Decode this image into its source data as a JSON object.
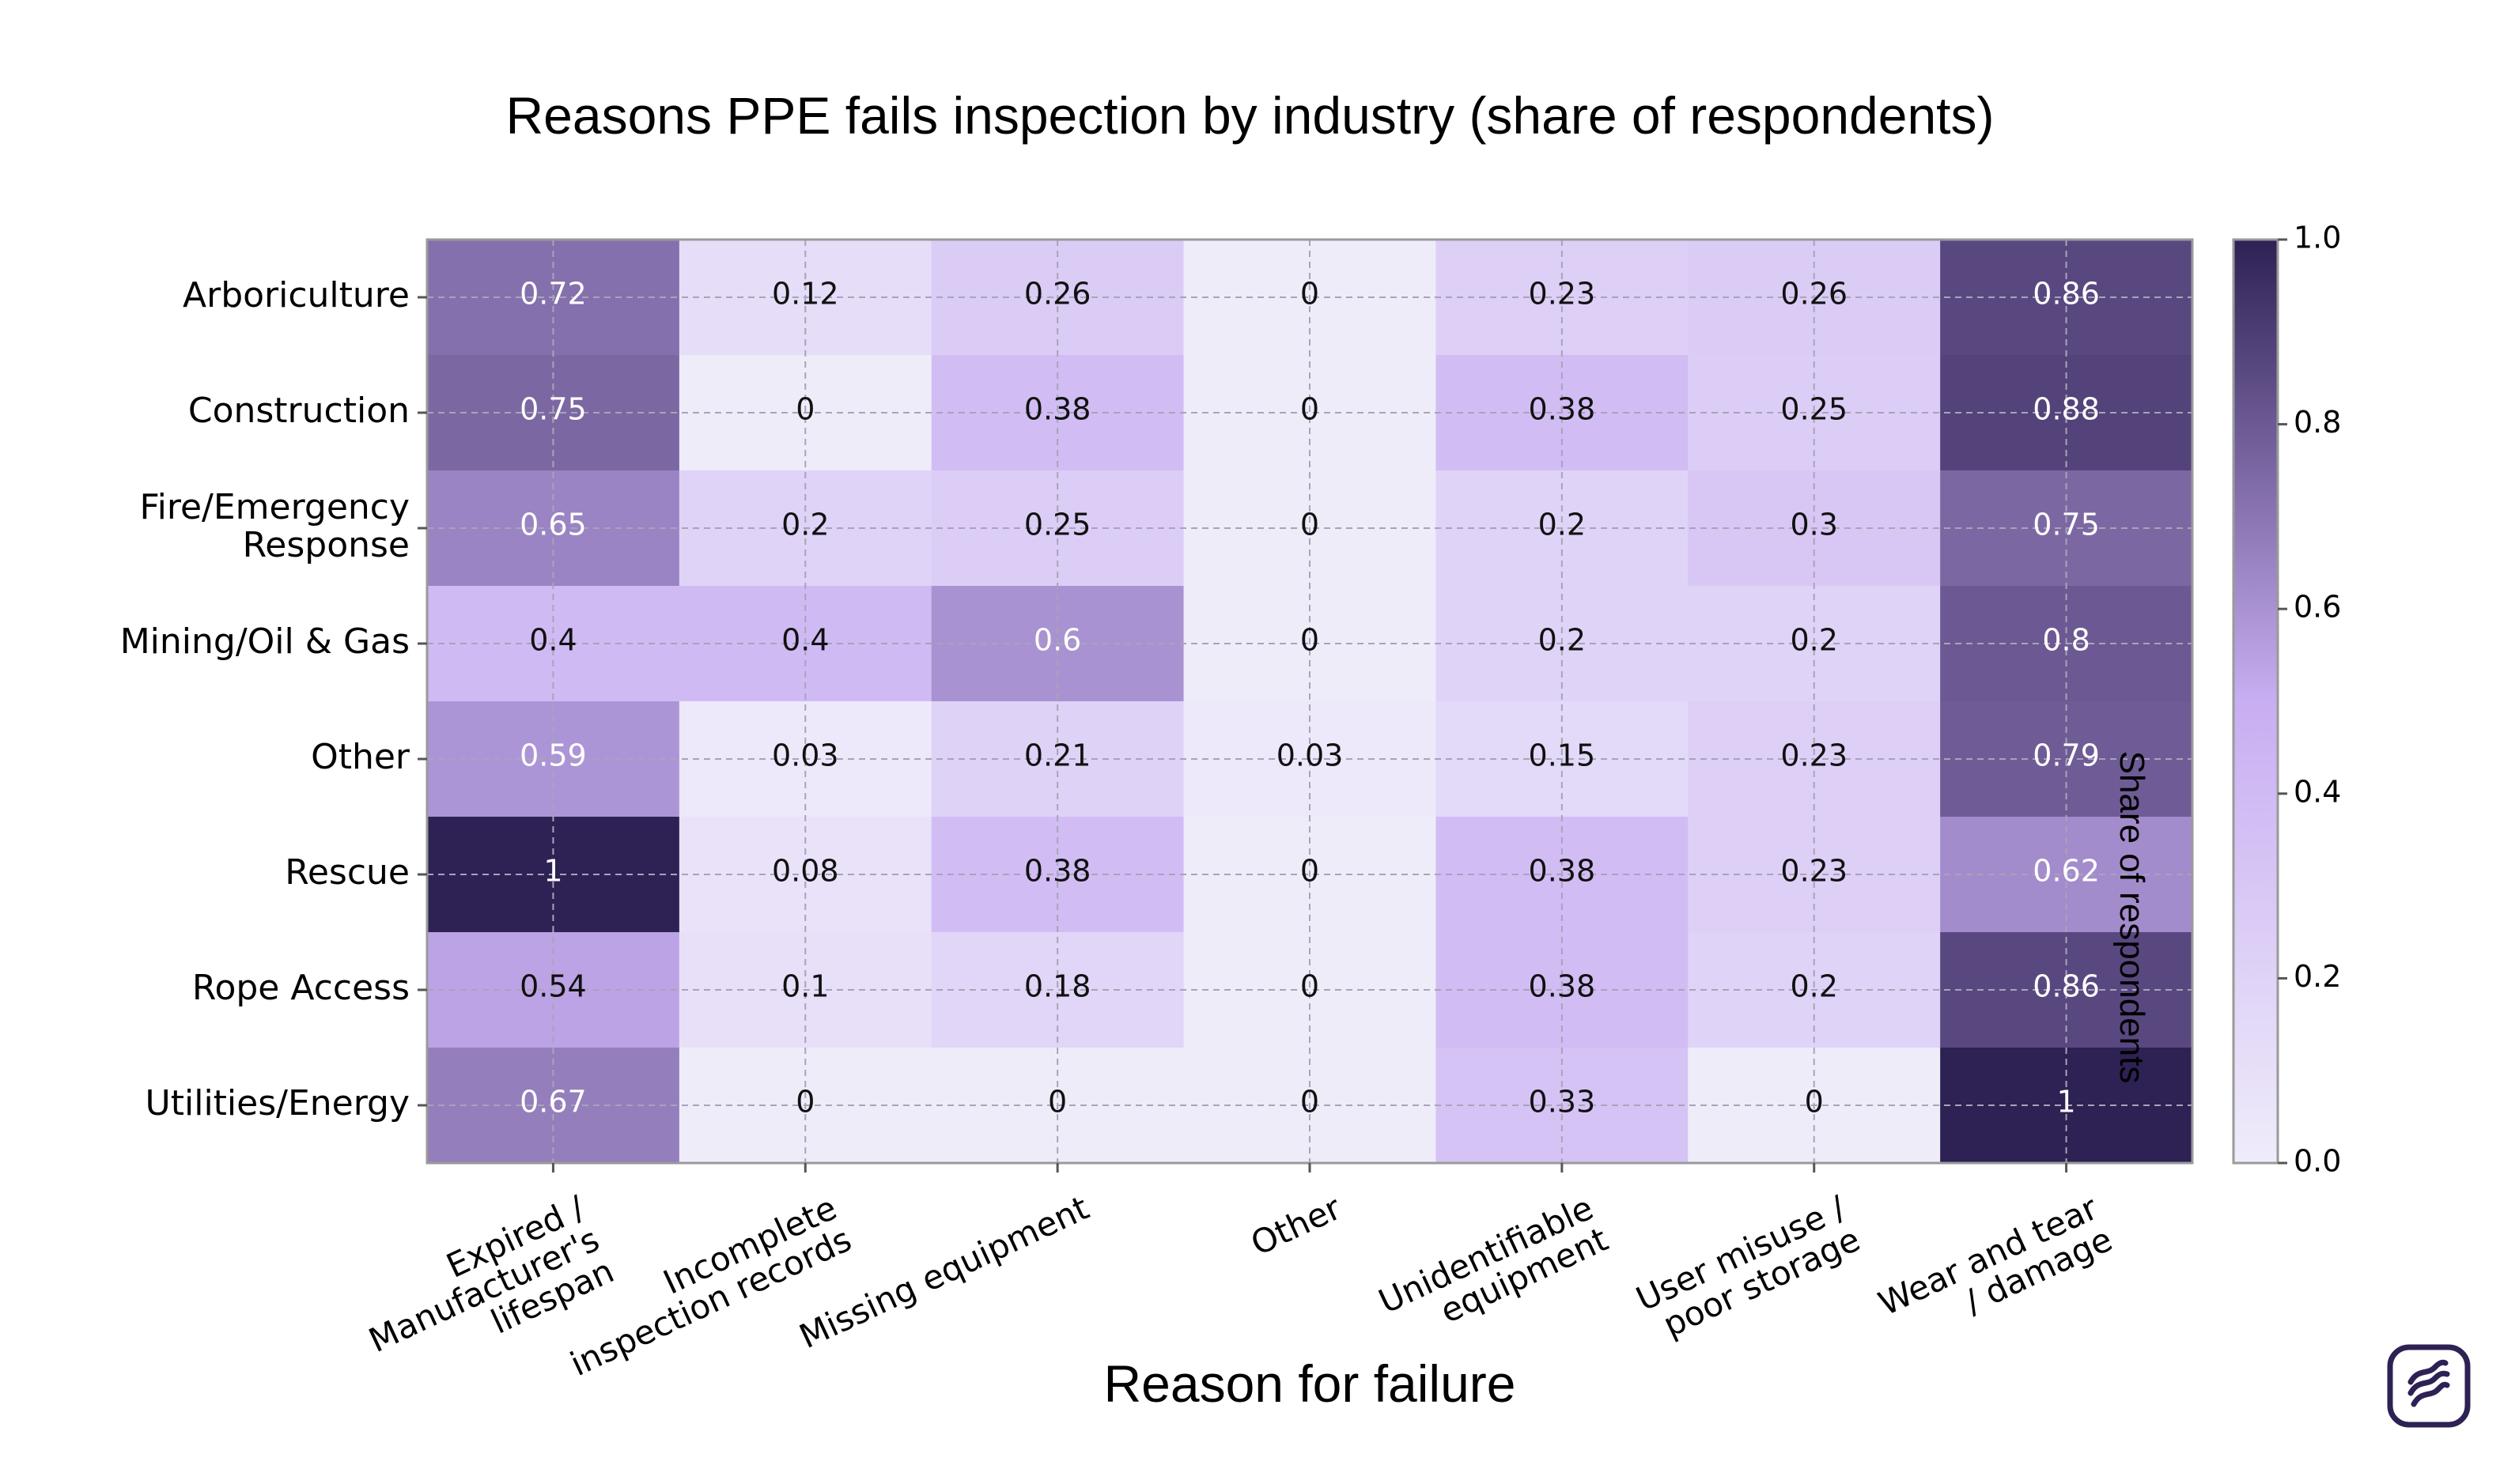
{
  "chart_data": {
    "type": "heatmap",
    "title": "Reasons PPE fails inspection by industry (share of respondents)",
    "xlabel": "Reason for failure",
    "ylabel": "",
    "colorbar_label": "Share of respondents",
    "colorbar_ticks": [
      "0.0",
      "0.2",
      "0.4",
      "0.6",
      "0.8",
      "1.0"
    ],
    "colorbar_range": [
      0,
      1
    ],
    "columns": [
      [
        "Expired /",
        "Manufacturer's",
        "lifespan"
      ],
      [
        "Incomplete",
        "inspection records"
      ],
      [
        "Missing equipment"
      ],
      [
        "Other"
      ],
      [
        "Unidentifiable",
        "equipment"
      ],
      [
        "User misuse /",
        "poor storage"
      ],
      [
        "Wear and tear",
        "/ damage"
      ]
    ],
    "rows": [
      [
        "Arboriculture"
      ],
      [
        "Construction"
      ],
      [
        "Fire/Emergency",
        "Response"
      ],
      [
        "Mining/Oil & Gas"
      ],
      [
        "Other"
      ],
      [
        "Rescue"
      ],
      [
        "Rope Access"
      ],
      [
        "Utilities/Energy"
      ]
    ],
    "values": [
      [
        0.72,
        0.12,
        0.26,
        0,
        0.23,
        0.26,
        0.86
      ],
      [
        0.75,
        0,
        0.38,
        0,
        0.38,
        0.25,
        0.88
      ],
      [
        0.65,
        0.2,
        0.25,
        0,
        0.2,
        0.3,
        0.75
      ],
      [
        0.4,
        0.4,
        0.6,
        0,
        0.2,
        0.2,
        0.8
      ],
      [
        0.59,
        0.03,
        0.21,
        0.03,
        0.15,
        0.23,
        0.79
      ],
      [
        1,
        0.08,
        0.38,
        0,
        0.38,
        0.23,
        0.62
      ],
      [
        0.54,
        0.1,
        0.18,
        0,
        0.38,
        0.2,
        0.86
      ],
      [
        0.67,
        0,
        0,
        0,
        0.33,
        0,
        1
      ]
    ],
    "grid": true,
    "colormap": [
      "#efecfa",
      "#c8aef2",
      "#2e2154"
    ]
  }
}
